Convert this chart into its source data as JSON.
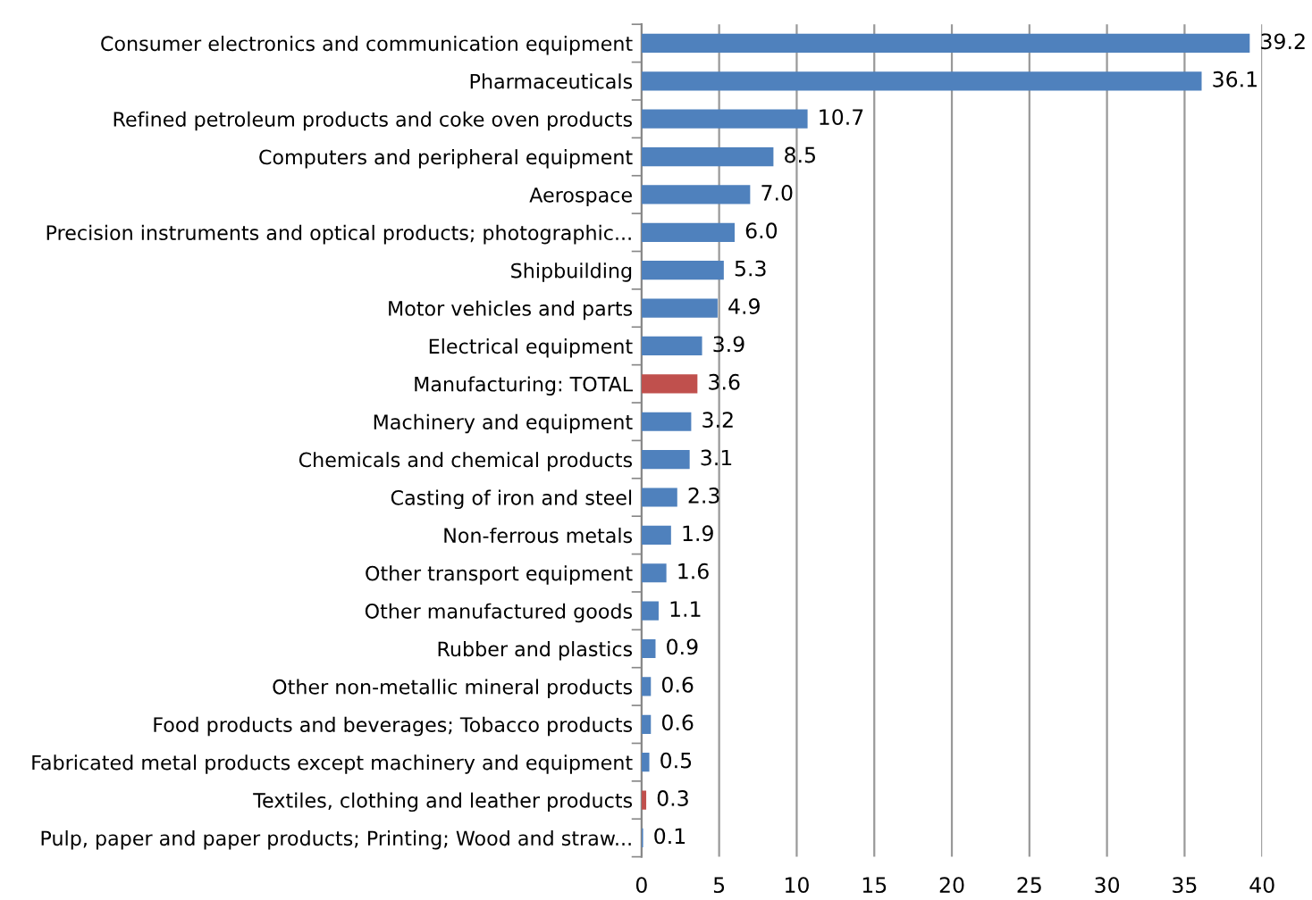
{
  "chart_data": {
    "type": "bar",
    "orientation": "horizontal",
    "categories": [
      "Consumer electronics and communication equipment",
      "Pharmaceuticals",
      "Refined petroleum products and coke oven products",
      "Computers and peripheral equipment",
      "Aerospace",
      "Precision instruments and optical products; photographic...",
      "Shipbuilding",
      "Motor vehicles and parts",
      "Electrical equipment",
      "Manufacturing: TOTAL",
      "Machinery and equipment",
      "Chemicals and chemical products",
      "Casting of iron and steel",
      "Non-ferrous metals",
      "Other transport equipment",
      "Other manufactured goods",
      "Rubber and plastics",
      "Other non-metallic mineral products",
      "Food products and beverages; Tobacco products",
      "Fabricated metal products except machinery and equipment",
      "Textiles, clothing and leather products",
      "Pulp, paper and paper products; Printing; Wood and straw..."
    ],
    "values": [
      39.2,
      36.1,
      10.7,
      8.5,
      7.0,
      6.0,
      5.3,
      4.9,
      3.9,
      3.6,
      3.2,
      3.1,
      2.3,
      1.9,
      1.6,
      1.1,
      0.9,
      0.6,
      0.6,
      0.5,
      0.3,
      0.1
    ],
    "colors": [
      "#4f81bd",
      "#4f81bd",
      "#4f81bd",
      "#4f81bd",
      "#4f81bd",
      "#4f81bd",
      "#4f81bd",
      "#4f81bd",
      "#4f81bd",
      "#c0504d",
      "#4f81bd",
      "#4f81bd",
      "#4f81bd",
      "#4f81bd",
      "#4f81bd",
      "#4f81bd",
      "#4f81bd",
      "#4f81bd",
      "#4f81bd",
      "#4f81bd",
      "#c0504d",
      "#4f81bd"
    ],
    "value_labels": [
      "39.2",
      "36.1",
      "10.7",
      "8.5",
      "7.0",
      "6.0",
      "5.3",
      "4.9",
      "3.9",
      "3.6",
      "3.2",
      "3.1",
      "2.3",
      "1.9",
      "1.6",
      "1.1",
      "0.9",
      "0.6",
      "0.6",
      "0.5",
      "0.3",
      "0.1"
    ],
    "xlim": [
      0,
      40
    ],
    "xticks": [
      0,
      5,
      10,
      15,
      20,
      25,
      30,
      35,
      40
    ],
    "grid": "x",
    "legend": false
  }
}
